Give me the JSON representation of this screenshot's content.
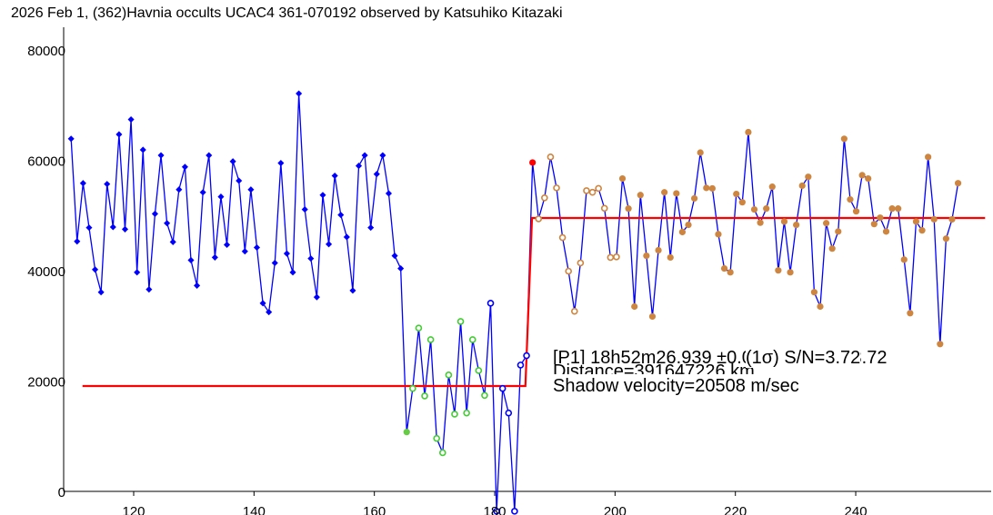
{
  "chart_data": {
    "type": "line",
    "title": "2026 Feb 1, (362)Havnia occults UCAC4 361-070192 observed by Katsuhiko Kitazaki",
    "xlabel": "",
    "ylabel": "",
    "xlim": [
      108.4,
      262.5
    ],
    "ylim": [
      0,
      84000
    ],
    "x_ticks": [
      120,
      140,
      160,
      180,
      200,
      220,
      240
    ],
    "y_ticks": [
      0,
      20000,
      40000,
      60000,
      80000
    ],
    "x_tick_labels": [
      "120",
      "140",
      "160",
      "180",
      "200",
      "220",
      "240"
    ],
    "y_tick_labels": [
      "0",
      "20000",
      "40000",
      "60000",
      "80000"
    ],
    "grid": false,
    "x_start": 109.6,
    "x_step": 0.996,
    "series": [
      {
        "name": "light curve",
        "color": "#0000ff",
        "values": [
          63900,
          45300,
          55850,
          47800,
          40200,
          36100,
          55700,
          47900,
          64700,
          47500,
          67400,
          39700,
          61900,
          36600,
          50300,
          60900,
          48600,
          45200,
          54700,
          58800,
          41900,
          37300,
          54200,
          60900,
          42400,
          53400,
          44700,
          59800,
          56300,
          43500,
          54700,
          44200,
          34100,
          32500,
          41400,
          59500,
          43100,
          39700,
          72100,
          51100,
          42200,
          35200,
          53700,
          44800,
          57200,
          50100,
          46100,
          36400,
          59000,
          60900,
          47800,
          57500,
          60900,
          54000,
          42700,
          40400,
          10750,
          18650,
          29600,
          17300,
          27500,
          9600,
          7000,
          21100,
          14000,
          30800,
          14200,
          27500,
          21900,
          17400,
          34100,
          -3600,
          18650,
          14200,
          -3600,
          22900,
          24600,
          59600,
          49400,
          53200,
          60600,
          55000,
          46000,
          39900,
          32650,
          41400,
          54500,
          54200,
          54900,
          51300,
          42400,
          42500,
          56700,
          51250,
          33500,
          53700,
          42700,
          31700,
          43700,
          54200,
          42400,
          54000,
          47000,
          48300,
          53100,
          61400,
          55000,
          54900,
          46600,
          40400,
          39700,
          53900,
          52400,
          65100,
          51100,
          48700,
          51250,
          55200,
          40050,
          48900,
          39700,
          48300,
          55400,
          57000,
          36100,
          33500,
          48600,
          44000,
          47100,
          63900,
          52900,
          50750,
          57300,
          56700,
          48450,
          49600,
          47100,
          51250,
          51250,
          42000,
          32300,
          48900,
          47300,
          60600,
          49300,
          26700,
          45800,
          49300,
          55850
        ],
        "marker_groups": [
          {
            "from": 0,
            "to": 55,
            "marker": "filled-diamond",
            "color": "#0000ff"
          },
          {
            "from": 56,
            "to": 56,
            "marker": "filled-circle",
            "color": "#66cc44"
          },
          {
            "from": 57,
            "to": 69,
            "marker": "hollow-circle",
            "color": "#44cc33"
          },
          {
            "from": 70,
            "to": 76,
            "marker": "hollow-circle",
            "color": "#0000ff"
          },
          {
            "from": 77,
            "to": 77,
            "marker": "filled-circle",
            "color": "#ff0000"
          },
          {
            "from": 78,
            "to": 91,
            "marker": "hollow-circle",
            "color": "#cd853f"
          },
          {
            "from": 92,
            "to": 148,
            "marker": "filled-circle",
            "color": "#cd853f"
          }
        ]
      },
      {
        "name": "model step",
        "color": "#ff0000",
        "x": [
          111.5,
          185.1,
          186.2,
          261.5
        ],
        "values": [
          19100,
          19100,
          49550,
          49550
        ]
      }
    ],
    "annotations": {
      "event": "[P1] 18h52m26.939 ±0.064(1σ) S/N=3.72",
      "event_tail": "(1σ) S/N=3.72",
      "distance": "Distance=391647226 km",
      "velocity": "Shadow velocity=20508 m/sec"
    }
  }
}
